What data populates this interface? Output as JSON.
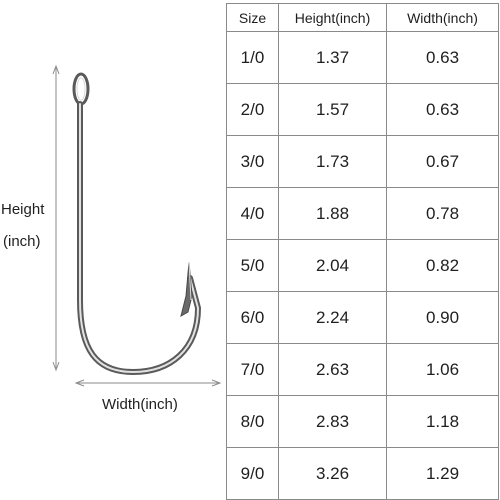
{
  "figure": {
    "height_label": "Height",
    "height_unit_label": "(inch)",
    "width_label": "Width(inch)",
    "hook_icon": "fish-hook-icon",
    "hook_color": "#9a9a9a"
  },
  "table": {
    "headers": {
      "size": "Size",
      "height": "Height(inch)",
      "width": "Width(inch)"
    },
    "rows": [
      {
        "size": "1/0",
        "height": "1.37",
        "width": "0.63"
      },
      {
        "size": "2/0",
        "height": "1.57",
        "width": "0.63"
      },
      {
        "size": "3/0",
        "height": "1.73",
        "width": "0.67"
      },
      {
        "size": "4/0",
        "height": "1.88",
        "width": "0.78"
      },
      {
        "size": "5/0",
        "height": "2.04",
        "width": "0.82"
      },
      {
        "size": "6/0",
        "height": "2.24",
        "width": "0.90"
      },
      {
        "size": "7/0",
        "height": "2.63",
        "width": "1.06"
      },
      {
        "size": "8/0",
        "height": "2.83",
        "width": "1.18"
      },
      {
        "size": "9/0",
        "height": "3.26",
        "width": "1.29"
      }
    ]
  }
}
